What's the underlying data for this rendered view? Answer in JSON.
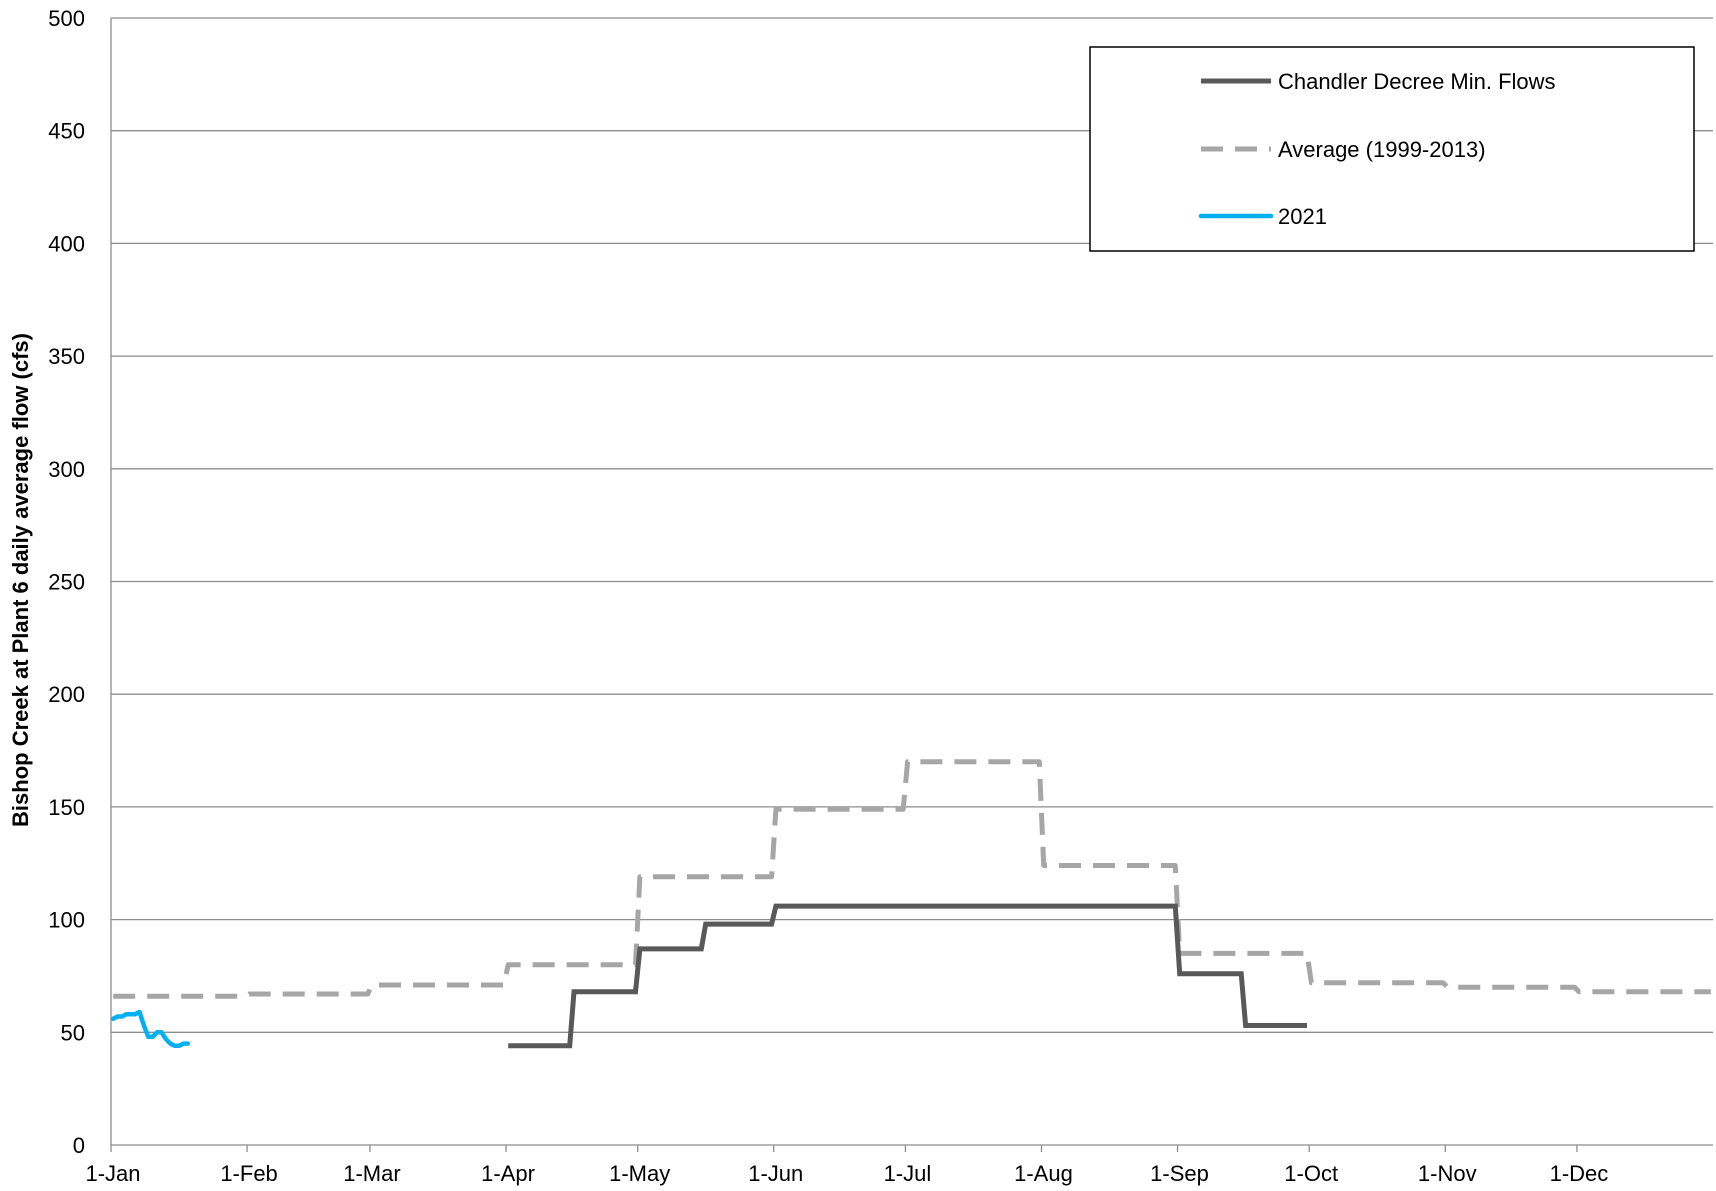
{
  "chart_data": {
    "type": "line",
    "title": "",
    "xlabel": "",
    "ylabel": "Bishop Creek at Plant 6 daily average flow (cfs)",
    "ylim": [
      0,
      500
    ],
    "yticks": [
      0,
      50,
      100,
      150,
      200,
      250,
      300,
      350,
      400,
      450,
      500
    ],
    "xlim": [
      "1-Jan",
      "31-Dec"
    ],
    "x_tick_labels": [
      "1-Jan",
      "1-Feb",
      "1-Mar",
      "1-Apr",
      "1-May",
      "1-Jun",
      "1-Jul",
      "1-Aug",
      "1-Sep",
      "1-Oct",
      "1-Nov",
      "1-Dec"
    ],
    "x_tick_dates": [
      "1-Jan",
      "1-Feb",
      "1-Mar",
      "1-Apr",
      "1-May",
      "1-Jun",
      "1-Jul",
      "1-Aug",
      "1-Sep",
      "1-Oct",
      "1-Nov",
      "1-Dec"
    ],
    "grid": "horizontal",
    "legend_position": "top-right",
    "series": [
      {
        "name": "Chandler Decree Min. Flows",
        "color": "#595959",
        "style": "solid",
        "points": [
          [
            "1-Apr",
            44
          ],
          [
            "15-Apr",
            44
          ],
          [
            "16-Apr",
            68
          ],
          [
            "30-Apr",
            68
          ],
          [
            "1-May",
            87
          ],
          [
            "15-May",
            87
          ],
          [
            "16-May",
            98
          ],
          [
            "31-May",
            98
          ],
          [
            "1-Jun",
            106
          ],
          [
            "31-Aug",
            106
          ],
          [
            "1-Sep",
            76
          ],
          [
            "15-Sep",
            76
          ],
          [
            "16-Sep",
            53
          ],
          [
            "30-Sep",
            53
          ]
        ]
      },
      {
        "name": "Average (1999-2013)",
        "color": "#a6a6a6",
        "style": "dashed",
        "points": [
          [
            "1-Jan",
            66
          ],
          [
            "31-Jan",
            66
          ],
          [
            "1-Feb",
            67
          ],
          [
            "28-Feb",
            67
          ],
          [
            "1-Mar",
            71
          ],
          [
            "31-Mar",
            71
          ],
          [
            "1-Apr",
            80
          ],
          [
            "30-Apr",
            80
          ],
          [
            "1-May",
            119
          ],
          [
            "31-May",
            119
          ],
          [
            "1-Jun",
            149
          ],
          [
            "30-Jun",
            149
          ],
          [
            "1-Jul",
            170
          ],
          [
            "31-Jul",
            170
          ],
          [
            "1-Aug",
            124
          ],
          [
            "31-Aug",
            124
          ],
          [
            "1-Sep",
            85
          ],
          [
            "30-Sep",
            85
          ],
          [
            "1-Oct",
            72
          ],
          [
            "31-Oct",
            72
          ],
          [
            "1-Nov",
            70
          ],
          [
            "30-Nov",
            70
          ],
          [
            "1-Dec",
            68
          ],
          [
            "31-Dec",
            68
          ]
        ]
      },
      {
        "name": "2021",
        "color": "#00b0f0",
        "style": "solid",
        "points": [
          [
            "1-Jan",
            56
          ],
          [
            "2-Jan",
            57
          ],
          [
            "3-Jan",
            57
          ],
          [
            "4-Jan",
            58
          ],
          [
            "5-Jan",
            58
          ],
          [
            "6-Jan",
            58
          ],
          [
            "7-Jan",
            59
          ],
          [
            "8-Jan",
            53
          ],
          [
            "9-Jan",
            48
          ],
          [
            "10-Jan",
            48
          ],
          [
            "11-Jan",
            50
          ],
          [
            "12-Jan",
            50
          ],
          [
            "13-Jan",
            47
          ],
          [
            "14-Jan",
            45
          ],
          [
            "15-Jan",
            44
          ],
          [
            "16-Jan",
            44
          ],
          [
            "17-Jan",
            45
          ],
          [
            "18-Jan",
            45
          ]
        ]
      }
    ]
  }
}
